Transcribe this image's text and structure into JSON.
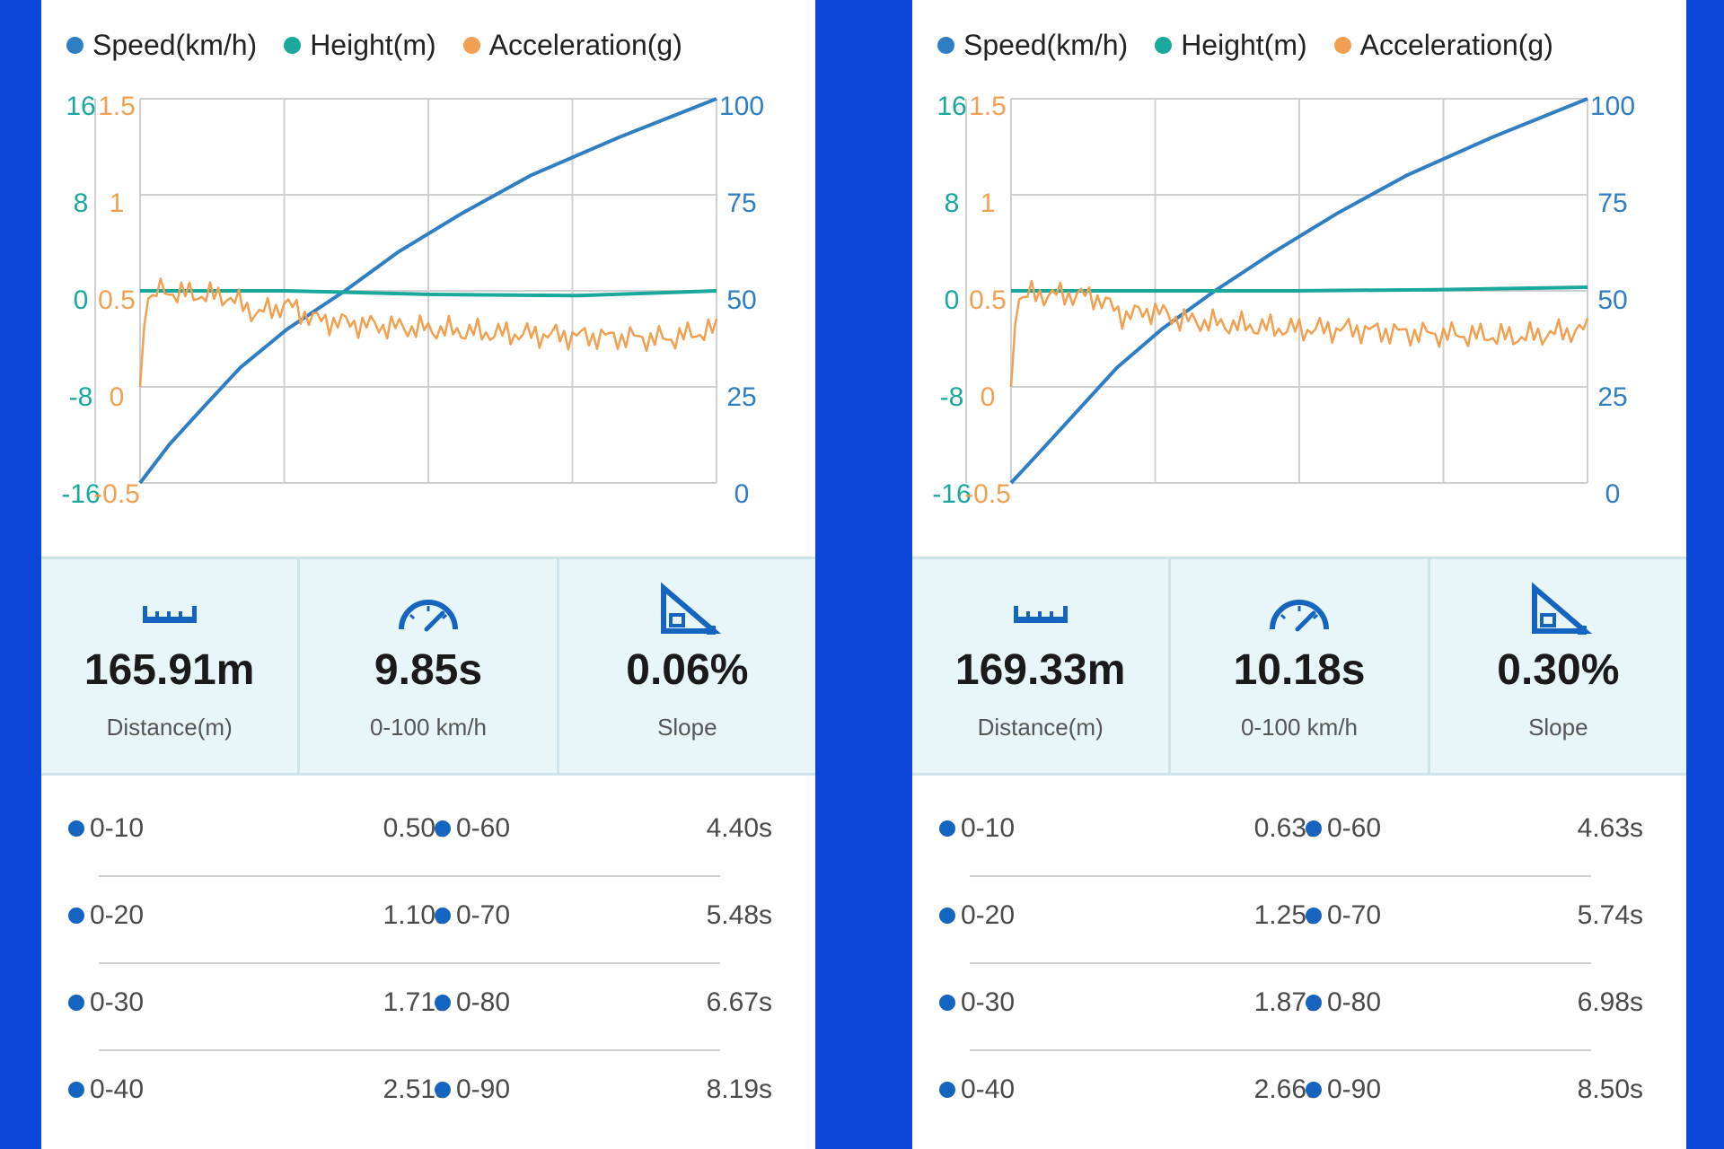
{
  "colors": {
    "speed": "#2f7ec4",
    "height": "#19a89b",
    "acceleration": "#f0a050",
    "icon_blue": "#1565c0",
    "split_dot": "#1565c0",
    "background": "#0d47d9"
  },
  "legend": [
    {
      "label": "Speed(km/h)",
      "color": "#2f7ec4"
    },
    {
      "label": "Height(m)",
      "color": "#19a89b"
    },
    {
      "label": "Acceleration(g)",
      "color": "#f0a050"
    }
  ],
  "axes": {
    "height_ticks": [
      "16",
      "8",
      "0",
      "-8",
      "-16"
    ],
    "accel_ticks": [
      "1.5",
      "1",
      "0.5",
      "0",
      "-0.5"
    ],
    "speed_ticks": [
      "100",
      "75",
      "50",
      "25",
      "0"
    ]
  },
  "panels": [
    {
      "stats": {
        "distance_value": "165.91m",
        "distance_label": "Distance(m)",
        "time_value": "9.85s",
        "time_label": "0-100 km/h",
        "slope_value": "0.06%",
        "slope_label": "Slope"
      },
      "splits": [
        {
          "left_label": "0-10",
          "left_time": "0.50s",
          "right_label": "0-60",
          "right_time": "4.40s"
        },
        {
          "left_label": "0-20",
          "left_time": "1.10s",
          "right_label": "0-70",
          "right_time": "5.48s"
        },
        {
          "left_label": "0-30",
          "left_time": "1.71s",
          "right_label": "0-80",
          "right_time": "6.67s"
        },
        {
          "left_label": "0-40",
          "left_time": "2.51s",
          "right_label": "0-90",
          "right_time": "8.19s"
        }
      ],
      "chart_data": {
        "type": "line",
        "x_range": [
          0,
          9.85
        ],
        "y_axes": {
          "height": {
            "unit": "m",
            "ylim": [
              -16,
              16
            ]
          },
          "acceleration": {
            "unit": "g",
            "ylim": [
              -0.5,
              1.5
            ]
          },
          "speed": {
            "unit": "km/h",
            "ylim": [
              0,
              100
            ]
          }
        },
        "grid": true,
        "series": [
          {
            "name": "Speed(km/h)",
            "axis": "speed",
            "x": [
              0,
              0.5,
              1.1,
              1.71,
              2.51,
              3.5,
              4.4,
              5.48,
              6.67,
              8.19,
              9.85
            ],
            "y": [
              0,
              10,
              20,
              30,
              40,
              50,
              60,
              70,
              80,
              90,
              100
            ]
          },
          {
            "name": "Height(m)",
            "axis": "height",
            "x": [
              0,
              2.5,
              5,
              7.5,
              9.85
            ],
            "y": [
              0,
              0,
              -0.3,
              -0.4,
              0
            ]
          },
          {
            "name": "Acceleration(g)",
            "axis": "acceleration",
            "x": [
              0,
              0.1,
              0.3,
              1,
              1.5,
              2,
              2.5,
              3,
              4,
              5,
              6,
              7,
              8,
              9,
              9.85
            ],
            "y": [
              0,
              0.45,
              0.5,
              0.48,
              0.47,
              0.38,
              0.43,
              0.35,
              0.32,
              0.3,
              0.28,
              0.27,
              0.26,
              0.25,
              0.3
            ]
          }
        ]
      }
    },
    {
      "stats": {
        "distance_value": "169.33m",
        "distance_label": "Distance(m)",
        "time_value": "10.18s",
        "time_label": "0-100 km/h",
        "slope_value": "0.30%",
        "slope_label": "Slope"
      },
      "splits": [
        {
          "left_label": "0-10",
          "left_time": "0.63s",
          "right_label": "0-60",
          "right_time": "4.63s"
        },
        {
          "left_label": "0-20",
          "left_time": "1.25s",
          "right_label": "0-70",
          "right_time": "5.74s"
        },
        {
          "left_label": "0-30",
          "left_time": "1.87s",
          "right_label": "0-80",
          "right_time": "6.98s"
        },
        {
          "left_label": "0-40",
          "left_time": "2.66s",
          "right_label": "0-90",
          "right_time": "8.50s"
        }
      ],
      "chart_data": {
        "type": "line",
        "x_range": [
          0,
          10.18
        ],
        "y_axes": {
          "height": {
            "unit": "m",
            "ylim": [
              -16,
              16
            ]
          },
          "acceleration": {
            "unit": "g",
            "ylim": [
              -0.5,
              1.5
            ]
          },
          "speed": {
            "unit": "km/h",
            "ylim": [
              0,
              100
            ]
          }
        },
        "grid": true,
        "series": [
          {
            "name": "Speed(km/h)",
            "axis": "speed",
            "x": [
              0,
              0.63,
              1.25,
              1.87,
              2.66,
              3.6,
              4.63,
              5.74,
              6.98,
              8.5,
              10.18
            ],
            "y": [
              0,
              10,
              20,
              30,
              40,
              50,
              60,
              70,
              80,
              90,
              100
            ]
          },
          {
            "name": "Height(m)",
            "axis": "height",
            "x": [
              0,
              2.5,
              5,
              7.5,
              10.18
            ],
            "y": [
              0,
              0,
              0,
              0.1,
              0.3
            ]
          },
          {
            "name": "Acceleration(g)",
            "axis": "acceleration",
            "x": [
              0,
              0.1,
              0.3,
              1,
              1.5,
              2,
              2.5,
              3,
              4,
              5,
              6,
              7,
              8,
              9,
              10.18
            ],
            "y": [
              0,
              0.45,
              0.48,
              0.48,
              0.47,
              0.37,
              0.4,
              0.35,
              0.32,
              0.3,
              0.3,
              0.28,
              0.27,
              0.26,
              0.3
            ]
          }
        ]
      }
    }
  ]
}
